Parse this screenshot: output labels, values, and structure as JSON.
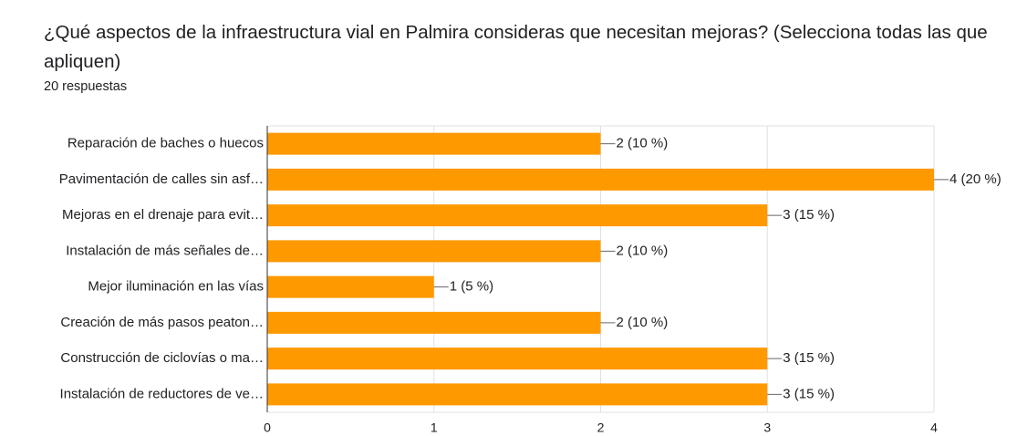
{
  "chart_data": {
    "type": "bar",
    "orientation": "horizontal",
    "title": "¿Qué aspectos de la infraestructura vial en Palmira consideras que necesitan mejoras? (Selecciona todas las que apliquen)",
    "subtitle": "20 respuestas",
    "categories": [
      "Reparación de baches o huecos",
      "Pavimentación de calles sin asf…",
      "Mejoras en el drenaje para evit…",
      "Instalación de más señales de…",
      "Mejor iluminación en las vías",
      "Creación de más pasos peaton…",
      "Construcción de ciclovías o ma…",
      "Instalación de reductores de ve…"
    ],
    "values": [
      2,
      4,
      3,
      2,
      1,
      2,
      3,
      3
    ],
    "value_labels": [
      "2 (10 %)",
      "4 (20 %)",
      "3 (15 %)",
      "2 (10 %)",
      "1 (5 %)",
      "2 (10 %)",
      "3 (15 %)",
      "3 (15 %)"
    ],
    "color": "#ff9900",
    "xlim": [
      0,
      4
    ],
    "xticks": [
      0,
      1,
      2,
      3,
      4
    ],
    "grid": true
  }
}
